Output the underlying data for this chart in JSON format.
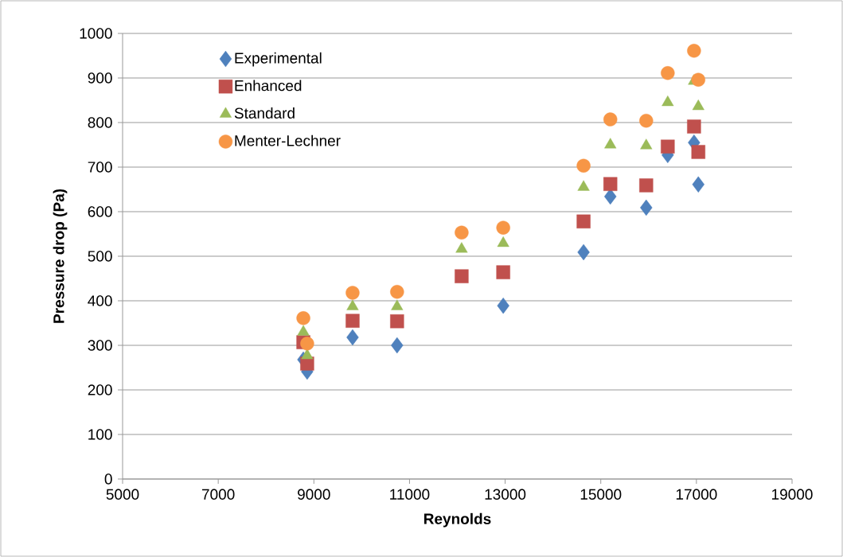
{
  "chart_data": {
    "type": "scatter",
    "xlabel": "Reynolds",
    "ylabel": "Pressure drop (Pa)",
    "xlim": [
      5000,
      19000
    ],
    "xticks": [
      5000,
      7000,
      9000,
      11000,
      13000,
      15000,
      17000,
      19000
    ],
    "ylim": [
      0,
      1000
    ],
    "yticks": [
      0,
      100,
      200,
      300,
      400,
      500,
      600,
      700,
      800,
      900,
      1000
    ],
    "grid": "y",
    "legend": "top left",
    "x": [
      8780,
      8860,
      9810,
      10740,
      12090,
      12960,
      14640,
      15200,
      15950,
      16400,
      16950,
      17040
    ],
    "series": [
      {
        "name": "Experimental",
        "color": "#4f81bd",
        "marker": "diamond",
        "values": [
          268,
          241,
          318,
          300,
          null,
          389,
          509,
          634,
          609,
          727,
          755,
          661
        ]
      },
      {
        "name": "Enhanced",
        "color": "#c0504d",
        "marker": "square",
        "values": [
          307,
          259,
          355,
          354,
          455,
          464,
          578,
          662,
          659,
          746,
          791,
          734
        ]
      },
      {
        "name": "Standard",
        "color": "#9bbb59",
        "marker": "triangle",
        "values": [
          330,
          277,
          387,
          387,
          516,
          529,
          655,
          750,
          748,
          845,
          893,
          836
        ]
      },
      {
        "name": "Menter-Lechner",
        "color": "#f79646",
        "marker": "circle",
        "values": [
          361,
          304,
          418,
          420,
          553,
          564,
          703,
          807,
          804,
          911,
          961,
          896
        ]
      }
    ]
  }
}
